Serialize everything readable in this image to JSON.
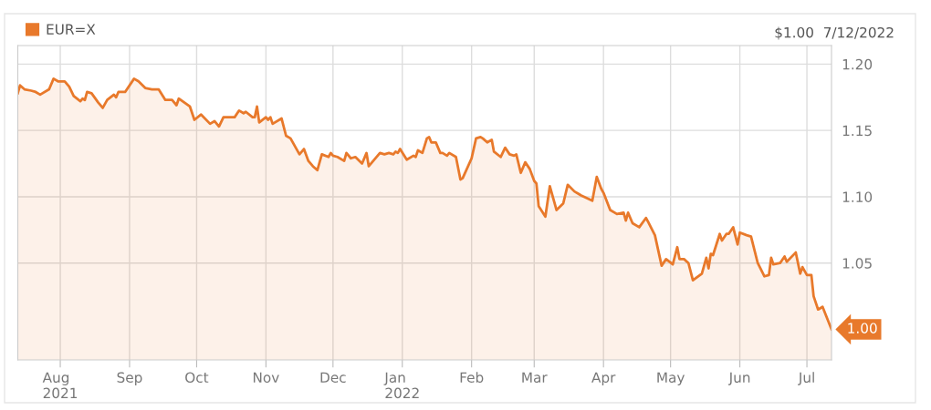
{
  "chart_data": {
    "type": "area",
    "x": [
      "2021-07-13",
      "2021-07-14",
      "2021-07-16",
      "2021-07-19",
      "2021-07-21",
      "2021-07-23",
      "2021-07-27",
      "2021-07-29",
      "2021-07-31",
      "2021-08-03",
      "2021-08-05",
      "2021-08-07",
      "2021-08-10",
      "2021-08-11",
      "2021-08-12",
      "2021-08-13",
      "2021-08-15",
      "2021-08-18",
      "2021-08-20",
      "2021-08-22",
      "2021-08-25",
      "2021-08-26",
      "2021-08-27",
      "2021-08-30",
      "2021-09-03",
      "2021-09-05",
      "2021-09-08",
      "2021-09-11",
      "2021-09-14",
      "2021-09-17",
      "2021-09-20",
      "2021-09-22",
      "2021-09-23",
      "2021-09-28",
      "2021-09-30",
      "2021-10-03",
      "2021-10-07",
      "2021-10-09",
      "2021-10-11",
      "2021-10-13",
      "2021-10-18",
      "2021-10-20",
      "2021-10-22",
      "2021-10-23",
      "2021-10-26",
      "2021-10-27",
      "2021-10-28",
      "2021-10-29",
      "2021-11-01",
      "2021-11-02",
      "2021-11-03",
      "2021-11-04",
      "2021-11-08",
      "2021-11-10",
      "2021-11-12",
      "2021-11-16",
      "2021-11-18",
      "2021-11-20",
      "2021-11-22",
      "2021-11-24",
      "2021-11-26",
      "2021-11-29",
      "2021-11-30",
      "2021-12-01",
      "2021-12-03",
      "2021-12-06",
      "2021-12-07",
      "2021-12-09",
      "2021-12-11",
      "2021-12-14",
      "2021-12-16",
      "2021-12-17",
      "2021-12-22",
      "2021-12-24",
      "2021-12-26",
      "2021-12-28",
      "2021-12-29",
      "2021-12-30",
      "2021-12-31",
      "2022-01-03",
      "2022-01-06",
      "2022-01-07",
      "2022-01-08",
      "2022-01-10",
      "2022-01-12",
      "2022-01-13",
      "2022-01-14",
      "2022-01-16",
      "2022-01-18",
      "2022-01-19",
      "2022-01-21",
      "2022-01-22",
      "2022-01-25",
      "2022-01-27",
      "2022-01-28",
      "2022-02-01",
      "2022-02-03",
      "2022-02-05",
      "2022-02-06",
      "2022-02-08",
      "2022-02-10",
      "2022-02-11",
      "2022-02-14",
      "2022-02-16",
      "2022-02-18",
      "2022-02-20",
      "2022-02-21",
      "2022-02-23",
      "2022-02-25",
      "2022-02-27",
      "2022-03-01",
      "2022-03-02",
      "2022-03-03",
      "2022-03-06",
      "2022-03-08",
      "2022-03-10",
      "2022-03-11",
      "2022-03-14",
      "2022-03-16",
      "2022-03-19",
      "2022-03-21",
      "2022-03-22",
      "2022-03-27",
      "2022-03-29",
      "2022-03-31",
      "2022-04-01",
      "2022-04-04",
      "2022-04-07",
      "2022-04-10",
      "2022-04-11",
      "2022-04-12",
      "2022-04-14",
      "2022-04-17",
      "2022-04-20",
      "2022-04-21",
      "2022-04-24",
      "2022-04-27",
      "2022-04-29",
      "2022-05-02",
      "2022-05-04",
      "2022-05-05",
      "2022-05-07",
      "2022-05-09",
      "2022-05-11",
      "2022-05-15",
      "2022-05-17",
      "2022-05-18",
      "2022-05-19",
      "2022-05-20",
      "2022-05-23",
      "2022-05-24",
      "2022-05-26",
      "2022-05-27",
      "2022-05-29",
      "2022-05-31",
      "2022-06-01",
      "2022-06-04",
      "2022-06-06",
      "2022-06-09",
      "2022-06-12",
      "2022-06-14",
      "2022-06-15",
      "2022-06-16",
      "2022-06-19",
      "2022-06-21",
      "2022-06-22",
      "2022-06-26",
      "2022-06-28",
      "2022-06-29",
      "2022-07-01",
      "2022-07-03",
      "2022-07-04",
      "2022-07-06",
      "2022-07-08",
      "2022-07-12"
    ],
    "series": [
      {
        "name": "EUR=X",
        "color": "#e8792b",
        "values": [
          1.178,
          1.184,
          1.181,
          1.18,
          1.179,
          1.177,
          1.181,
          1.189,
          1.187,
          1.187,
          1.183,
          1.176,
          1.172,
          1.174,
          1.173,
          1.179,
          1.178,
          1.171,
          1.167,
          1.173,
          1.177,
          1.175,
          1.179,
          1.179,
          1.189,
          1.187,
          1.182,
          1.181,
          1.181,
          1.173,
          1.173,
          1.169,
          1.174,
          1.168,
          1.158,
          1.162,
          1.155,
          1.157,
          1.153,
          1.16,
          1.16,
          1.165,
          1.163,
          1.164,
          1.16,
          1.16,
          1.168,
          1.156,
          1.16,
          1.158,
          1.16,
          1.155,
          1.159,
          1.146,
          1.144,
          1.132,
          1.136,
          1.127,
          1.123,
          1.12,
          1.132,
          1.13,
          1.133,
          1.131,
          1.13,
          1.127,
          1.133,
          1.129,
          1.13,
          1.125,
          1.133,
          1.123,
          1.133,
          1.132,
          1.133,
          1.132,
          1.134,
          1.133,
          1.136,
          1.128,
          1.131,
          1.13,
          1.135,
          1.133,
          1.144,
          1.145,
          1.141,
          1.141,
          1.133,
          1.133,
          1.131,
          1.133,
          1.13,
          1.113,
          1.114,
          1.129,
          1.144,
          1.145,
          1.144,
          1.141,
          1.143,
          1.134,
          1.13,
          1.137,
          1.132,
          1.131,
          1.132,
          1.118,
          1.126,
          1.121,
          1.112,
          1.11,
          1.093,
          1.085,
          1.108,
          1.096,
          1.09,
          1.095,
          1.109,
          1.104,
          1.102,
          1.101,
          1.097,
          1.115,
          1.106,
          1.103,
          1.09,
          1.087,
          1.088,
          1.082,
          1.088,
          1.08,
          1.077,
          1.084,
          1.081,
          1.071,
          1.048,
          1.053,
          1.049,
          1.062,
          1.053,
          1.053,
          1.05,
          1.037,
          1.042,
          1.054,
          1.046,
          1.057,
          1.056,
          1.072,
          1.067,
          1.072,
          1.072,
          1.077,
          1.064,
          1.073,
          1.071,
          1.07,
          1.05,
          1.04,
          1.041,
          1.054,
          1.049,
          1.05,
          1.055,
          1.051,
          1.058,
          1.042,
          1.047,
          1.041,
          1.041,
          1.025,
          1.015,
          1.017,
          1.0
        ]
      }
    ],
    "xlim": [
      "2021-07-13",
      "2022-07-12"
    ],
    "xticks": [
      {
        "value": "2021-08-01",
        "label": "Aug\n2021"
      },
      {
        "value": "2021-09-01",
        "label": "Sep"
      },
      {
        "value": "2021-10-01",
        "label": "Oct"
      },
      {
        "value": "2021-11-01",
        "label": "Nov"
      },
      {
        "value": "2021-12-01",
        "label": "Dec"
      },
      {
        "value": "2022-01-01",
        "label": "Jan\n2022"
      },
      {
        "value": "2022-02-01",
        "label": "Feb"
      },
      {
        "value": "2022-03-01",
        "label": "Mar"
      },
      {
        "value": "2022-04-01",
        "label": "Apr"
      },
      {
        "value": "2022-05-01",
        "label": "May"
      },
      {
        "value": "2022-06-01",
        "label": "Jun"
      },
      {
        "value": "2022-07-01",
        "label": "Jul"
      }
    ],
    "ylim": [
      0.977,
      1.214
    ],
    "yticks": [
      {
        "value": 1.05,
        "label": "1.05"
      },
      {
        "value": 1.1,
        "label": "1.10"
      },
      {
        "value": 1.15,
        "label": "1.15"
      },
      {
        "value": 1.2,
        "label": "1.20"
      }
    ],
    "grid": true,
    "legend": "top left",
    "annotations": [
      "$1.00  7/12/2022",
      {
        "text": "1.00",
        "x": "2022-07-12",
        "y": 1.0
      }
    ]
  }
}
